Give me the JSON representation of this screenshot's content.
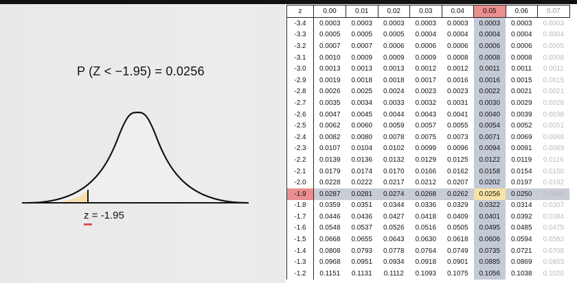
{
  "probability_label": "P (Z < −1.95) = 0.0256",
  "z_letter": "z",
  "z_value": " = -1.95",
  "colors": {
    "highlight_header": "#e98f8f",
    "highlight_column": "#c5cbd6",
    "answer_cell": "#f7e3a8",
    "shaded_area": "#f5ddb0"
  },
  "table": {
    "headers": [
      "z",
      "0.00",
      "0.01",
      "0.02",
      "0.03",
      "0.04",
      "0.05",
      "0.06",
      "0.07"
    ],
    "rows": [
      [
        "-3.4",
        "0.0003",
        "0.0003",
        "0.0003",
        "0.0003",
        "0.0003",
        "0.0003",
        "0.0003",
        "0.0003"
      ],
      [
        "-3.3",
        "0.0005",
        "0.0005",
        "0.0005",
        "0.0004",
        "0.0004",
        "0.0004",
        "0.0004",
        "0.0004"
      ],
      [
        "-3.2",
        "0.0007",
        "0.0007",
        "0.0006",
        "0.0006",
        "0.0006",
        "0.0006",
        "0.0006",
        "0.0005"
      ],
      [
        "-3.1",
        "0.0010",
        "0.0009",
        "0.0009",
        "0.0009",
        "0.0008",
        "0.0008",
        "0.0008",
        "0.0008"
      ],
      [
        "-3.0",
        "0.0013",
        "0.0013",
        "0.0013",
        "0.0012",
        "0.0012",
        "0.0011",
        "0.0011",
        "0.0011"
      ],
      [
        "-2.9",
        "0.0019",
        "0.0018",
        "0.0018",
        "0.0017",
        "0.0016",
        "0.0016",
        "0.0015",
        "0.0015"
      ],
      [
        "-2.8",
        "0.0026",
        "0.0025",
        "0.0024",
        "0.0023",
        "0.0023",
        "0.0022",
        "0.0021",
        "0.0021"
      ],
      [
        "-2.7",
        "0.0035",
        "0.0034",
        "0.0033",
        "0.0032",
        "0.0031",
        "0.0030",
        "0.0029",
        "0.0028"
      ],
      [
        "-2.6",
        "0.0047",
        "0.0045",
        "0.0044",
        "0.0043",
        "0.0041",
        "0.0040",
        "0.0039",
        "0.0038"
      ],
      [
        "-2.5",
        "0.0062",
        "0.0060",
        "0.0059",
        "0.0057",
        "0.0055",
        "0.0054",
        "0.0052",
        "0.0051"
      ],
      [
        "-2.4",
        "0.0082",
        "0.0080",
        "0.0078",
        "0.0075",
        "0.0073",
        "0.0071",
        "0.0069",
        "0.0068"
      ],
      [
        "-2.3",
        "0.0107",
        "0.0104",
        "0.0102",
        "0.0099",
        "0.0096",
        "0.0094",
        "0.0091",
        "0.0089"
      ],
      [
        "-2.2",
        "0.0139",
        "0.0136",
        "0.0132",
        "0.0129",
        "0.0125",
        "0.0122",
        "0.0119",
        "0.0116"
      ],
      [
        "-2.1",
        "0.0179",
        "0.0174",
        "0.0170",
        "0.0166",
        "0.0162",
        "0.0158",
        "0.0154",
        "0.0150"
      ],
      [
        "-2.0",
        "0.0228",
        "0.0222",
        "0.0217",
        "0.0212",
        "0.0207",
        "0.0202",
        "0.0197",
        "0.0192"
      ],
      [
        "-1.9",
        "0.0287",
        "0.0281",
        "0.0274",
        "0.0268",
        "0.0262",
        "0.0256",
        "0.0250",
        "0.0244"
      ],
      [
        "-1.8",
        "0.0359",
        "0.0351",
        "0.0344",
        "0.0336",
        "0.0329",
        "0.0322",
        "0.0314",
        "0.0307"
      ],
      [
        "-1.7",
        "0.0446",
        "0.0436",
        "0.0427",
        "0.0418",
        "0.0409",
        "0.0401",
        "0.0392",
        "0.0384"
      ],
      [
        "-1.6",
        "0.0548",
        "0.0537",
        "0.0526",
        "0.0516",
        "0.0505",
        "0.0495",
        "0.0485",
        "0.0475"
      ],
      [
        "-1.5",
        "0.0668",
        "0.0655",
        "0.0643",
        "0.0630",
        "0.0618",
        "0.0606",
        "0.0594",
        "0.0582"
      ],
      [
        "-1.4",
        "0.0808",
        "0.0793",
        "0.0778",
        "0.0764",
        "0.0749",
        "0.0735",
        "0.0721",
        "0.0708"
      ],
      [
        "-1.3",
        "0.0968",
        "0.0951",
        "0.0934",
        "0.0918",
        "0.0901",
        "0.0885",
        "0.0869",
        "0.0853"
      ],
      [
        "-1.2",
        "0.1151",
        "0.1131",
        "0.1112",
        "0.1093",
        "0.1075",
        "0.1056",
        "0.1038",
        "0.1020"
      ]
    ],
    "highlight_row": "-1.9",
    "highlight_col": "0.05"
  }
}
